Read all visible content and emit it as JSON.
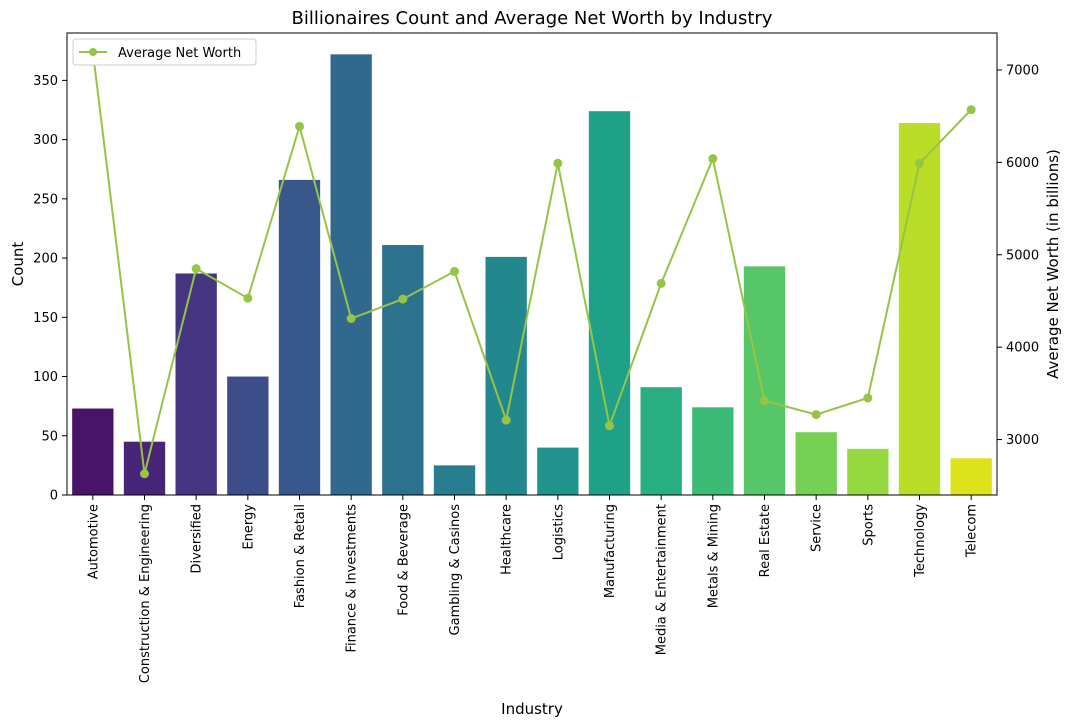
{
  "chart_data": {
    "type": "bar",
    "title": "Billionaires Count and Average Net Worth by Industry",
    "xlabel": "Industry",
    "ylabel": "Count",
    "y2label": "Average Net Worth (in billions)",
    "ylim": [
      0,
      390
    ],
    "y2lim": [
      2400,
      7400
    ],
    "yticks": [
      0,
      50,
      100,
      150,
      200,
      250,
      300,
      350
    ],
    "y2ticks": [
      3000,
      4000,
      5000,
      6000,
      7000
    ],
    "grid": false,
    "legend_position": "top-left",
    "categories": [
      "Automotive",
      "Construction & Engineering",
      "Diversified",
      "Energy",
      "Fashion & Retail",
      "Finance & Investments",
      "Food & Beverage",
      "Gambling & Casinos",
      "Healthcare",
      "Logistics",
      "Manufacturing",
      "Media & Entertainment",
      "Metals & Mining",
      "Real Estate",
      "Service",
      "Sports",
      "Technology",
      "Telecom"
    ],
    "series": [
      {
        "kind": "bar",
        "axis": "left",
        "values": [
          73,
          45,
          187,
          100,
          266,
          372,
          211,
          25,
          201,
          40,
          324,
          91,
          74,
          193,
          53,
          39,
          314,
          31
        ],
        "colors": [
          "#481468",
          "#482677",
          "#453581",
          "#3d4d8a",
          "#38588c",
          "#30688e",
          "#2c728e",
          "#287d8e",
          "#23888e",
          "#20938c",
          "#1fa088",
          "#28ae80",
          "#3bbb75",
          "#56c667",
          "#75d054",
          "#95d840",
          "#bade28",
          "#dde318"
        ]
      },
      {
        "kind": "line",
        "axis": "right",
        "name": "Average Net Worth",
        "color": "#95c447",
        "values": [
          7200,
          2630,
          4850,
          4530,
          6390,
          4310,
          4520,
          4820,
          3210,
          5990,
          3150,
          4690,
          6040,
          3420,
          3270,
          3450,
          5990,
          6570
        ]
      }
    ]
  }
}
